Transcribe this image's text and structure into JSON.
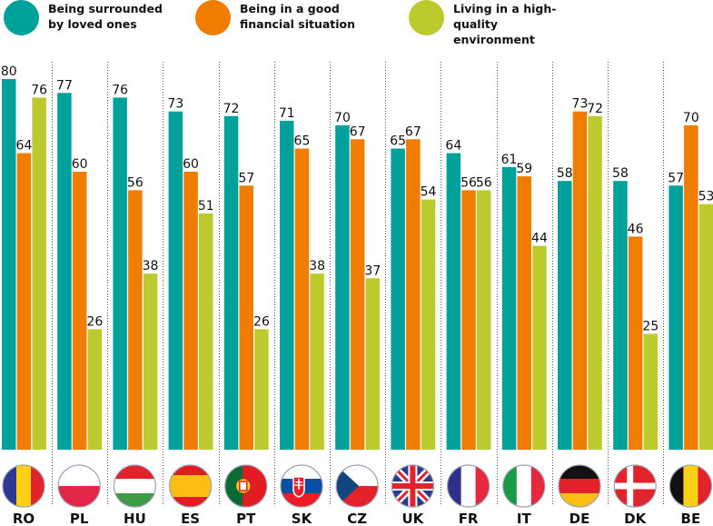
{
  "chart_data": {
    "type": "bar",
    "title": "",
    "xlabel": "",
    "ylabel": "",
    "ylim": [
      0,
      80
    ],
    "grid": false,
    "legend_position": "top",
    "categories": [
      "RO",
      "PL",
      "HU",
      "ES",
      "PT",
      "SK",
      "CZ",
      "UK",
      "FR",
      "IT",
      "DE",
      "DK",
      "BE"
    ],
    "series": [
      {
        "name": "Being surrounded by loved ones",
        "legend_text": "Being surrounded\nby loved ones",
        "color": "#00A19A",
        "values": [
          80,
          77,
          76,
          73,
          72,
          71,
          70,
          65,
          64,
          61,
          58,
          58,
          57
        ]
      },
      {
        "name": "Being in a good financial situation",
        "legend_text": "Being in a good\nfinancial situation",
        "color": "#F07D00",
        "values": [
          64,
          60,
          56,
          60,
          57,
          65,
          67,
          67,
          56,
          59,
          73,
          46,
          70
        ]
      },
      {
        "name": "Living in a high-quality environment",
        "legend_text": "Living in a high-quality\nenvironment",
        "color": "#BDCA2D",
        "values": [
          76,
          26,
          38,
          51,
          26,
          38,
          37,
          54,
          56,
          44,
          72,
          25,
          53
        ]
      }
    ],
    "flags": [
      "romania-flag",
      "poland-flag",
      "hungary-flag",
      "spain-flag",
      "portugal-flag",
      "slovakia-flag",
      "czech-flag",
      "uk-flag",
      "france-flag",
      "italy-flag",
      "germany-flag",
      "denmark-flag",
      "belgium-flag"
    ]
  }
}
